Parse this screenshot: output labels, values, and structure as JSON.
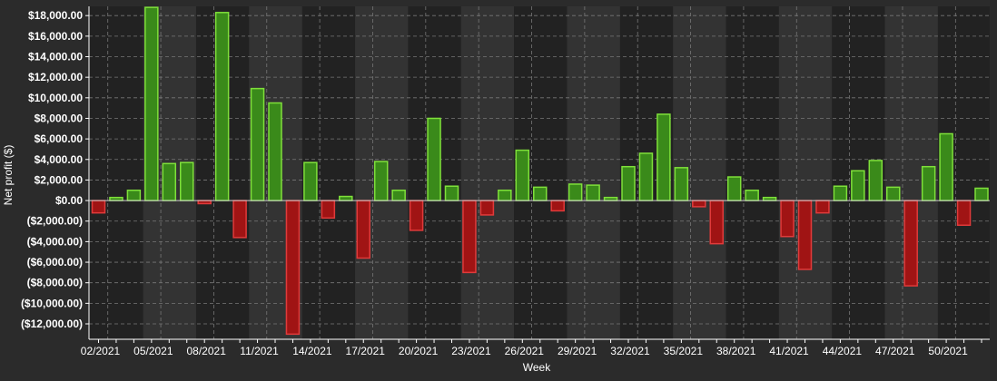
{
  "chart_data": {
    "type": "bar",
    "title": "",
    "xlabel": "Week",
    "ylabel": "Net profit ($)",
    "ylim": [
      -13500,
      18900
    ],
    "yticks": [
      18000,
      16000,
      14000,
      12000,
      10000,
      8000,
      6000,
      4000,
      2000,
      0,
      -2000,
      -4000,
      -6000,
      -8000,
      -10000,
      -12000
    ],
    "ytick_labels": [
      "$18,000.00",
      "$16,000.00",
      "$14,000.00",
      "$12,000.00",
      "$10,000.00",
      "$8,000.00",
      "$6,000.00",
      "$4,000.00",
      "$2,000.00",
      "$0.00",
      "($2,000.00)",
      "($4,000.00)",
      "($6,000.00)",
      "($8,000.00)",
      "($10,000.00)",
      "($12,000.00)"
    ],
    "xtick_labels": [
      "02/2021",
      "05/2021",
      "08/2021",
      "11/2021",
      "14/2021",
      "17/2021",
      "20/2021",
      "23/2021",
      "26/2021",
      "29/2021",
      "32/2021",
      "35/2021",
      "38/2021",
      "41/2021",
      "44/2021",
      "47/2021",
      "50/2021"
    ],
    "first_week": 2,
    "grid": true,
    "values": [
      -1200,
      300,
      1000,
      18800,
      3600,
      3700,
      -300,
      18300,
      -3600,
      10900,
      9500,
      -13000,
      3700,
      -1700,
      400,
      -5600,
      3800,
      1000,
      -2900,
      8000,
      1400,
      -7000,
      -1400,
      1000,
      4900,
      1300,
      -1000,
      1600,
      1500,
      300,
      3300,
      4600,
      8400,
      3200,
      -600,
      -4200,
      2300,
      1000,
      300,
      -3500,
      -6700,
      -1200,
      1400,
      2900,
      3900,
      1300,
      -8300,
      3300,
      6500,
      -2400,
      1200
    ],
    "colors": {
      "positive_fill": "#3a8a1a",
      "positive_stroke": "#7fe03a",
      "negative_fill": "#a01414",
      "negative_stroke": "#e03a3a",
      "background": "#222222",
      "band": "#333333",
      "page": "#2b2b2b",
      "text": "#ffffff",
      "grid": "#777777"
    }
  }
}
